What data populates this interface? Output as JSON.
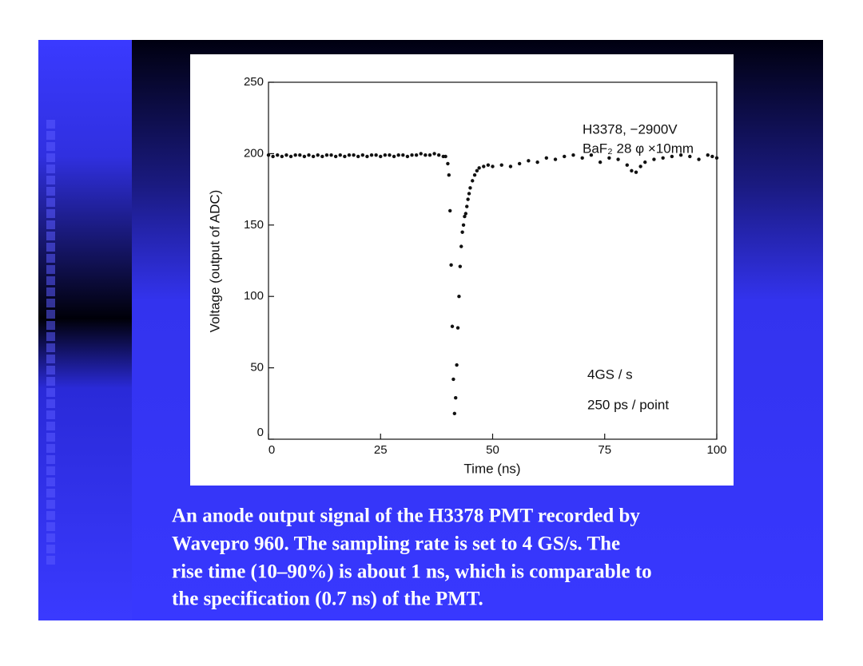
{
  "chart_data": {
    "type": "scatter",
    "xlabel": "Time (ns)",
    "ylabel": "Voltage (output of ADC)",
    "annotations": [
      "H3378, −2900V",
      "BaF₂ 28 φ ×10mm",
      "4GS / s",
      "250 ps / point"
    ],
    "x": [
      0,
      1,
      2,
      3,
      4,
      5,
      6,
      7,
      8,
      9,
      10,
      11,
      12,
      13,
      14,
      15,
      16,
      17,
      18,
      19,
      20,
      21,
      22,
      23,
      24,
      25,
      26,
      27,
      28,
      29,
      30,
      31,
      32,
      33,
      34,
      35,
      36,
      37,
      38,
      39,
      39.5,
      40,
      40.25,
      40.5,
      40.75,
      41,
      41.25,
      41.5,
      41.75,
      42,
      42.25,
      42.5,
      42.75,
      43,
      43.25,
      43.5,
      43.75,
      44,
      44.25,
      44.5,
      44.75,
      45,
      45.5,
      46,
      46.5,
      47,
      48,
      49,
      50,
      52,
      54,
      56,
      58,
      60,
      62,
      64,
      66,
      68,
      70,
      72,
      74,
      76,
      78,
      80,
      81,
      82,
      83,
      84,
      86,
      88,
      90,
      92,
      94,
      96,
      98,
      99,
      100
    ],
    "values": [
      199,
      198,
      199,
      198,
      199,
      198,
      199,
      199,
      198,
      199,
      198,
      199,
      198,
      199,
      199,
      198,
      199,
      198,
      199,
      199,
      198,
      199,
      198,
      199,
      199,
      198,
      199,
      199,
      198,
      199,
      199,
      198,
      199,
      199,
      200,
      199,
      199,
      200,
      199,
      198,
      198,
      193,
      185,
      160,
      122,
      79,
      42,
      18,
      29,
      52,
      78,
      100,
      121,
      135,
      145,
      150,
      156,
      158,
      163,
      168,
      172,
      176,
      181,
      185,
      188,
      190,
      191,
      192,
      191,
      192,
      191,
      193,
      195,
      194,
      197,
      196,
      198,
      199,
      197,
      199,
      194,
      197,
      196,
      192,
      188,
      187,
      191,
      194,
      196,
      197,
      198,
      199,
      198,
      196,
      199,
      198,
      197
    ],
    "color": "#111111",
    "xlim": [
      0,
      100
    ],
    "ylim": [
      0,
      250
    ],
    "xticks": [
      0,
      25,
      50,
      75,
      100
    ],
    "yticks": [
      0,
      50,
      100,
      150,
      200,
      250
    ]
  },
  "caption_lines": [
    "An anode output signal of the H3378 PMT recorded by",
    "Wavepro 960. The sampling rate is set to 4 GS/s. The",
    "rise time (10–90%) is about 1 ns, which is comparable to",
    "the specification (0.7 ns) of the PMT."
  ]
}
